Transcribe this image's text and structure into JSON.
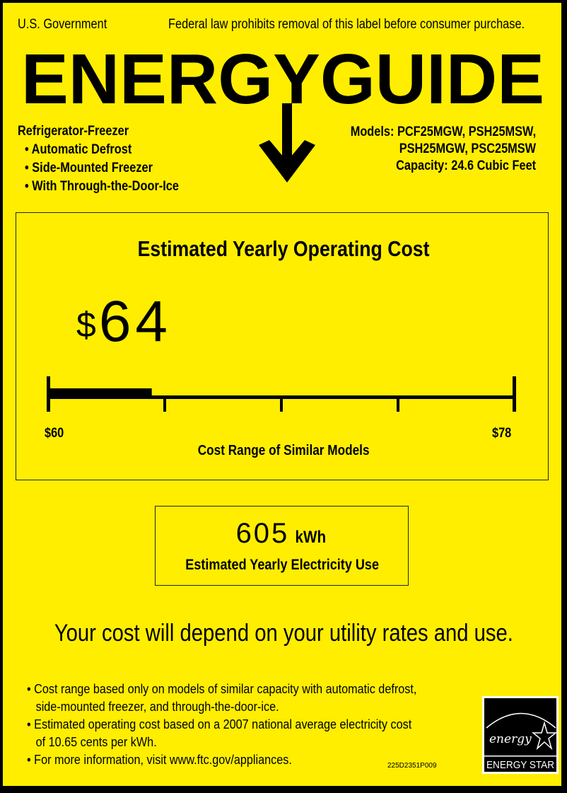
{
  "header": {
    "left": "U.S. Government",
    "right": "Federal law prohibits removal of this label before consumer purchase.",
    "logo_text": "ENERGYGUIDE"
  },
  "product": {
    "type": "Refrigerator-Freezer",
    "features": [
      "Automatic Defrost",
      "Side-Mounted Freezer",
      "With Through-the-Door-Ice"
    ],
    "models_line1": "Models: PCF25MGW, PSH25MSW,",
    "models_line2": "PSH25MGW, PSC25MSW",
    "capacity": "Capacity: 24.6 Cubic Feet"
  },
  "cost": {
    "title": "Estimated Yearly Operating Cost",
    "currency": "$",
    "value": "64",
    "range_min_label": "$60",
    "range_max_label": "$78",
    "range_min": 60,
    "range_max": 78,
    "current": 64,
    "range_caption": "Cost Range of Similar Models"
  },
  "electricity": {
    "value": "605",
    "unit": "kWh",
    "caption": "Estimated Yearly Electricity Use"
  },
  "depend_note": "Your cost will depend on your utility rates and use.",
  "notes": [
    [
      "Cost range based only on models of similar capacity with automatic defrost,",
      "side-mounted freezer, and through-the-door-ice."
    ],
    [
      "Estimated operating cost based on a 2007 national average electricity cost",
      "of 10.65 cents per kWh."
    ],
    [
      "For more information, visit www.ftc.gov/appliances."
    ]
  ],
  "label_code": "225D2351P009",
  "energy_star": {
    "script": "energy",
    "text": "ENERGY STAR"
  },
  "colors": {
    "background": "#ffee00",
    "ink": "#000000"
  }
}
